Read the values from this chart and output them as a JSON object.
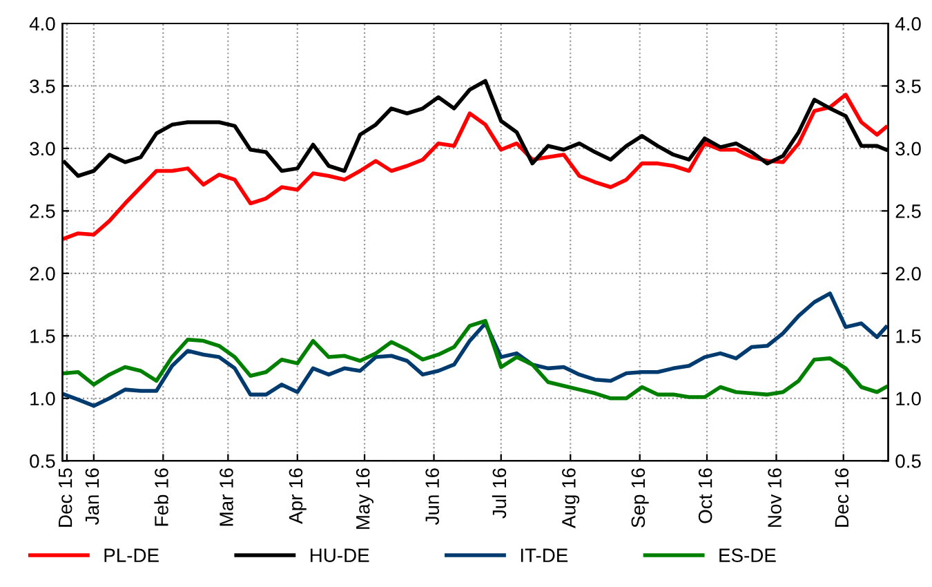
{
  "chart_data": {
    "type": "line",
    "x": [
      "2015-12-19",
      "2015-12-25",
      "2016-01-01",
      "2016-01-08",
      "2016-01-15",
      "2016-01-22",
      "2016-01-29",
      "2016-02-05",
      "2016-02-12",
      "2016-02-19",
      "2016-02-26",
      "2016-03-04",
      "2016-03-11",
      "2016-03-18",
      "2016-03-25",
      "2016-04-01",
      "2016-04-08",
      "2016-04-15",
      "2016-04-22",
      "2016-04-29",
      "2016-05-06",
      "2016-05-13",
      "2016-05-20",
      "2016-05-27",
      "2016-06-03",
      "2016-06-10",
      "2016-06-17",
      "2016-06-24",
      "2016-07-01",
      "2016-07-08",
      "2016-07-15",
      "2016-07-22",
      "2016-07-29",
      "2016-08-05",
      "2016-08-12",
      "2016-08-19",
      "2016-08-26",
      "2016-09-02",
      "2016-09-09",
      "2016-09-16",
      "2016-09-23",
      "2016-09-30",
      "2016-10-07",
      "2016-10-14",
      "2016-10-21",
      "2016-10-28",
      "2016-11-04",
      "2016-11-11",
      "2016-11-18",
      "2016-11-25",
      "2016-12-02",
      "2016-12-09",
      "2016-12-16",
      "2016-12-20"
    ],
    "series": [
      {
        "name": "PL-DE",
        "color": "#ff0000",
        "values": [
          2.28,
          2.32,
          2.31,
          2.42,
          2.56,
          2.69,
          2.82,
          2.82,
          2.84,
          2.71,
          2.79,
          2.75,
          2.56,
          2.6,
          2.69,
          2.67,
          2.8,
          2.78,
          2.75,
          2.82,
          2.9,
          2.82,
          2.86,
          2.91,
          3.04,
          3.02,
          3.28,
          3.19,
          2.99,
          3.04,
          2.91,
          2.93,
          2.95,
          2.78,
          2.73,
          2.69,
          2.75,
          2.88,
          2.88,
          2.86,
          2.82,
          3.04,
          2.99,
          2.99,
          2.93,
          2.9,
          2.89,
          3.04,
          3.3,
          3.33,
          3.43,
          3.21,
          3.11,
          3.17
        ]
      },
      {
        "name": "HU-DE",
        "color": "#000000",
        "values": [
          2.89,
          2.78,
          2.82,
          2.95,
          2.89,
          2.93,
          3.12,
          3.19,
          3.21,
          3.21,
          3.21,
          3.18,
          2.99,
          2.97,
          2.82,
          2.84,
          3.03,
          2.86,
          2.82,
          3.11,
          3.19,
          3.32,
          3.28,
          3.32,
          3.41,
          3.32,
          3.47,
          3.54,
          3.22,
          3.13,
          2.88,
          3.02,
          2.99,
          3.04,
          2.97,
          2.91,
          3.02,
          3.1,
          3.02,
          2.95,
          2.91,
          3.08,
          3.01,
          3.04,
          2.97,
          2.88,
          2.94,
          3.13,
          3.39,
          3.32,
          3.26,
          3.02,
          3.02,
          2.99
        ]
      },
      {
        "name": "IT-DE",
        "color": "#003b6f",
        "values": [
          1.03,
          0.99,
          0.94,
          1.0,
          1.07,
          1.06,
          1.06,
          1.26,
          1.38,
          1.35,
          1.33,
          1.24,
          1.03,
          1.03,
          1.11,
          1.05,
          1.24,
          1.19,
          1.24,
          1.22,
          1.33,
          1.34,
          1.3,
          1.19,
          1.22,
          1.27,
          1.46,
          1.6,
          1.33,
          1.36,
          1.27,
          1.24,
          1.25,
          1.19,
          1.15,
          1.14,
          1.2,
          1.21,
          1.21,
          1.24,
          1.26,
          1.33,
          1.36,
          1.32,
          1.41,
          1.42,
          1.52,
          1.66,
          1.77,
          1.84,
          1.57,
          1.6,
          1.49,
          1.57
        ]
      },
      {
        "name": "ES-DE",
        "color": "#008000",
        "values": [
          1.2,
          1.21,
          1.11,
          1.19,
          1.25,
          1.22,
          1.14,
          1.33,
          1.47,
          1.46,
          1.42,
          1.33,
          1.18,
          1.21,
          1.31,
          1.28,
          1.46,
          1.33,
          1.34,
          1.3,
          1.36,
          1.45,
          1.39,
          1.31,
          1.35,
          1.41,
          1.58,
          1.62,
          1.25,
          1.33,
          1.27,
          1.13,
          1.1,
          1.07,
          1.04,
          1.0,
          1.0,
          1.09,
          1.03,
          1.03,
          1.01,
          1.01,
          1.09,
          1.05,
          1.04,
          1.03,
          1.05,
          1.14,
          1.31,
          1.32,
          1.24,
          1.09,
          1.05,
          1.09
        ]
      }
    ],
    "xlim": [
      "2015-12-18",
      "2016-12-21"
    ],
    "xticks": [
      {
        "value": "2015-12-20",
        "label": "Dec 15"
      },
      {
        "value": "2016-01-01",
        "label": "Jan 16"
      },
      {
        "value": "2016-02-01",
        "label": "Feb 16"
      },
      {
        "value": "2016-03-01",
        "label": "Mar 16"
      },
      {
        "value": "2016-04-01",
        "label": "Apr 16"
      },
      {
        "value": "2016-05-01",
        "label": "May 16"
      },
      {
        "value": "2016-06-01",
        "label": "Jun 16"
      },
      {
        "value": "2016-07-01",
        "label": "Jul 16"
      },
      {
        "value": "2016-08-01",
        "label": "Aug 16"
      },
      {
        "value": "2016-09-01",
        "label": "Sep 16"
      },
      {
        "value": "2016-10-01",
        "label": "Oct 16"
      },
      {
        "value": "2016-11-01",
        "label": "Nov 16"
      },
      {
        "value": "2016-12-01",
        "label": "Dec 16"
      }
    ],
    "ylim": [
      0.5,
      4.0
    ],
    "yticks": [
      {
        "value": 0.5,
        "label": "0.5"
      },
      {
        "value": 1,
        "label": "1.0"
      },
      {
        "value": 1.5,
        "label": "1.5"
      },
      {
        "value": 2,
        "label": "2.0"
      },
      {
        "value": 2.5,
        "label": "2.5"
      },
      {
        "value": 3,
        "label": "3.0"
      },
      {
        "value": 3.5,
        "label": "3.5"
      },
      {
        "value": 4,
        "label": "4.0"
      }
    ],
    "y2lim": [
      0.5,
      4.0
    ],
    "y2ticks": [
      {
        "value": 0.5,
        "label": "0.5"
      },
      {
        "value": 1,
        "label": "1.0"
      },
      {
        "value": 1.5,
        "label": "1.5"
      },
      {
        "value": 2,
        "label": "2.0"
      },
      {
        "value": 2.5,
        "label": "2.5"
      },
      {
        "value": 3,
        "label": "3.0"
      },
      {
        "value": 3.5,
        "label": "3.5"
      },
      {
        "value": 4,
        "label": "4.0"
      }
    ],
    "grid": true,
    "legend": "bottom",
    "line_style": "solid",
    "marker": "none"
  }
}
